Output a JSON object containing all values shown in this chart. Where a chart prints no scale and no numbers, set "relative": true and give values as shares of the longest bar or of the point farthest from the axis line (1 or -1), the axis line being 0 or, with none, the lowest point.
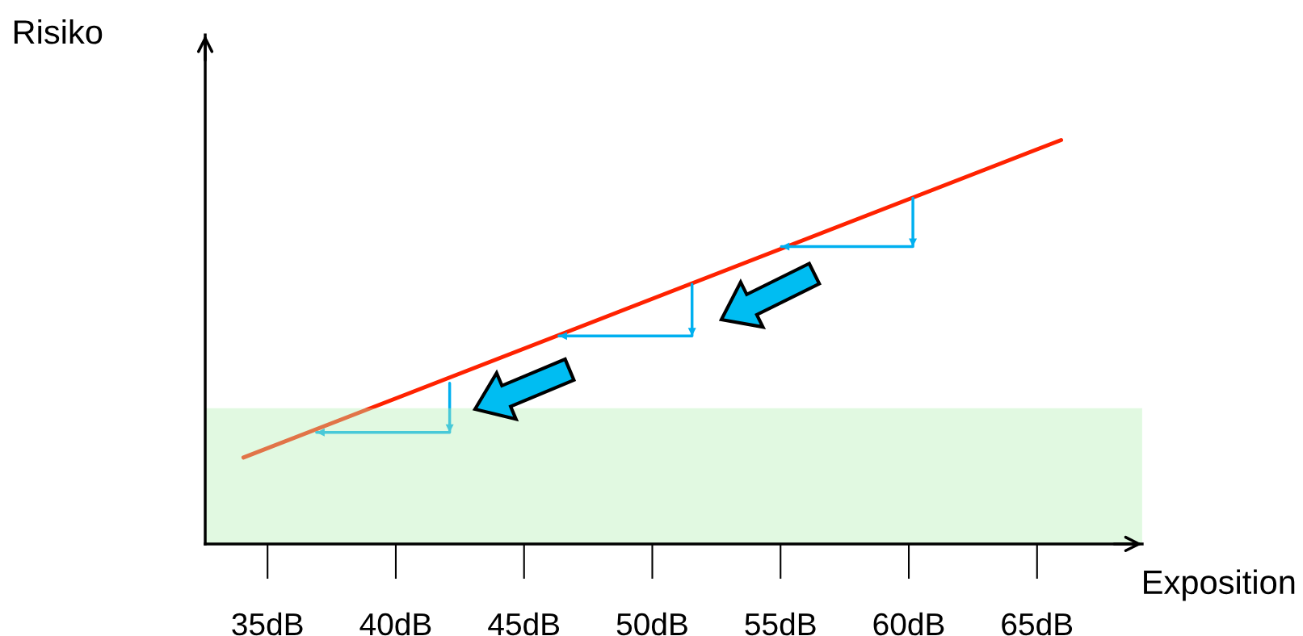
{
  "chart_data": {
    "type": "line",
    "relative": true,
    "xlabel": "Exposition",
    "ylabel": "Risiko",
    "xlim": [
      32.57,
      69.1
    ],
    "xticks": [
      {
        "value": 35,
        "label": "35dB"
      },
      {
        "value": 40,
        "label": "40dB"
      },
      {
        "value": 45,
        "label": "45dB"
      },
      {
        "value": 50,
        "label": "50dB"
      },
      {
        "value": 55,
        "label": "55dB"
      },
      {
        "value": 60,
        "label": "60dB"
      },
      {
        "value": 65,
        "label": "65dB"
      }
    ],
    "series": [
      {
        "color": "#ff2200",
        "x": [
          34.06,
          65.94
        ],
        "values": [
          0.214,
          1.0
        ]
      },
      {
        "color": "#00b0f0",
        "x": [
          60.16,
          60.16,
          55.03
        ],
        "values": [
          0.856,
          0.736,
          0.736
        ]
      },
      {
        "color": "#00b0f0",
        "x": [
          51.55,
          51.55,
          46.36
        ],
        "values": [
          0.643,
          0.515,
          0.515
        ]
      },
      {
        "color": "#00b0f0",
        "x": [
          42.1,
          42.1,
          36.91
        ],
        "values": [
          0.398,
          0.276,
          0.276
        ]
      }
    ],
    "bands": [
      {
        "axis": "y",
        "from": 0,
        "to": 0.336,
        "color": "#b3f0b3"
      }
    ],
    "grid": false
  }
}
